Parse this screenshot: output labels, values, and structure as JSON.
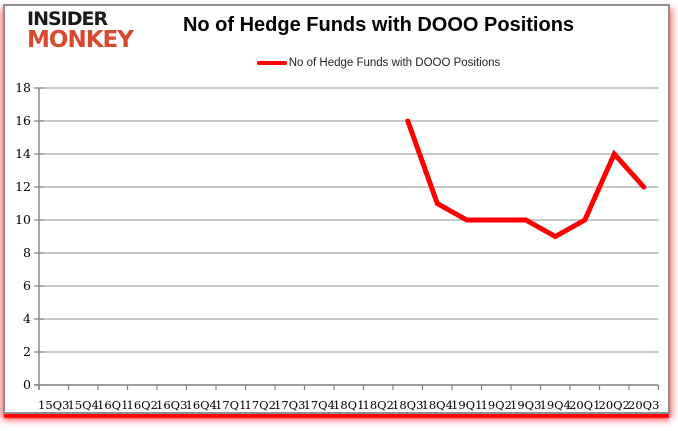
{
  "logo": {
    "line1": "INSIDER",
    "line2": "MONKEY",
    "line1_color": "#1a1a1a",
    "line2_color": "#d8492f"
  },
  "header": {
    "title": "No of Hedge Funds with DOOO Positions"
  },
  "legend": {
    "label": "No of Hedge Funds with DOOO Positions",
    "marker_color": "#ff0000"
  },
  "chart_data": {
    "type": "line",
    "title": "No of Hedge Funds with DOOO Positions",
    "xlabel": "",
    "ylabel": "",
    "categories": [
      "15Q3",
      "15Q4",
      "16Q1",
      "16Q2",
      "16Q3",
      "16Q4",
      "17Q1",
      "17Q2",
      "17Q3",
      "17Q4",
      "18Q1",
      "18Q2",
      "18Q3",
      "18Q4",
      "19Q1",
      "19Q2",
      "19Q3",
      "19Q4",
      "20Q1",
      "20Q2",
      "20Q3"
    ],
    "series": [
      {
        "name": "No of Hedge Funds with DOOO Positions",
        "color": "#ff0000",
        "values": [
          null,
          null,
          null,
          null,
          null,
          null,
          null,
          null,
          null,
          null,
          null,
          null,
          16,
          11,
          10,
          10,
          10,
          9,
          10,
          14,
          12
        ]
      }
    ],
    "ylim": [
      0,
      18
    ],
    "ytick_step": 2,
    "grid": true,
    "legend_position": "top",
    "grid_color": "#a6a6a6",
    "axis_color": "#808080",
    "tick_label_color": "#000000"
  }
}
